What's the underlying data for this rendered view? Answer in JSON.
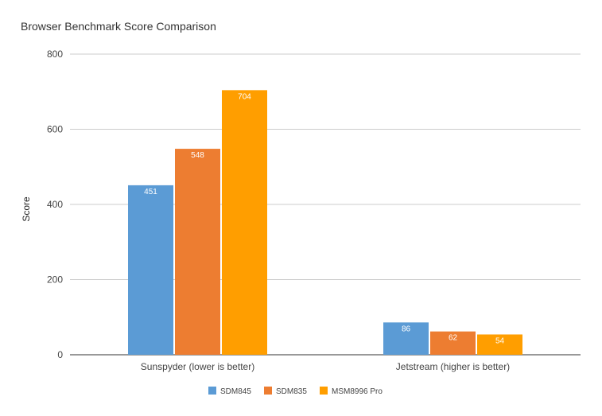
{
  "chart_data": {
    "type": "bar",
    "title": "Browser Benchmark Score Comparison",
    "xlabel": "",
    "ylabel": "Score",
    "ylim": [
      0,
      800
    ],
    "yticks": [
      0,
      200,
      400,
      600,
      800
    ],
    "grid": true,
    "legend_position": "bottom",
    "categories": [
      "Sunspyder (lower is better)",
      "Jetstream (higher is better)"
    ],
    "series": [
      {
        "name": "SDM845",
        "color": "#5b9bd5",
        "values": [
          451,
          86
        ]
      },
      {
        "name": "SDM835",
        "color": "#ed7d31",
        "values": [
          548,
          62
        ]
      },
      {
        "name": "MSM8996 Pro",
        "color": "#ff9e00",
        "values": [
          704,
          54
        ]
      }
    ]
  }
}
